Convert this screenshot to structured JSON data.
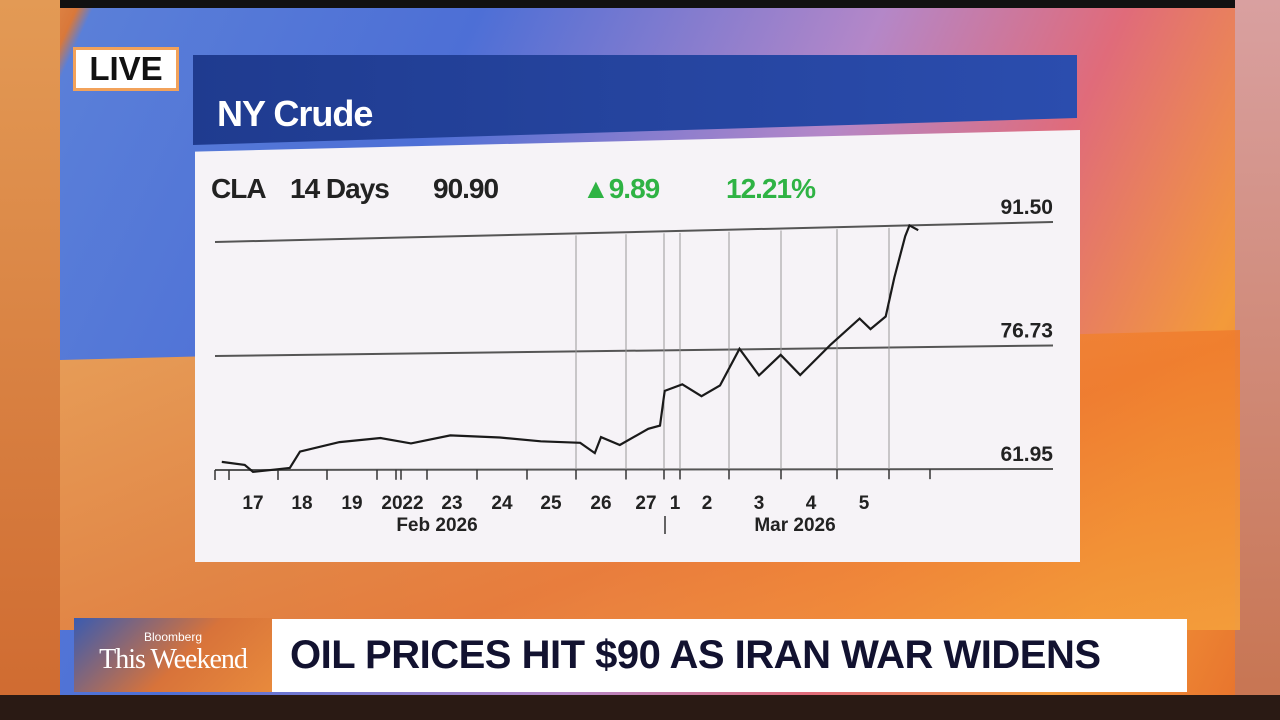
{
  "live_badge": "LIVE",
  "title": "NY Crude",
  "header": {
    "ticker": "CLA",
    "period": "14 Days",
    "last": "90.90",
    "change": "9.89",
    "change_pct": "12.21%",
    "up_icon": "triangle-up-icon"
  },
  "colors": {
    "up": "#2fb344",
    "title_bar": "#2b4dae",
    "line": "#1a1a1a"
  },
  "lower_third": {
    "brand_top": "Bloomberg",
    "brand_show": "This Weekend",
    "headline": "OIL PRICES HIT $90 AS IRAN WAR WIDENS"
  },
  "chart_data": {
    "type": "line",
    "title": "NY Crude",
    "y_ticks": [
      "61.95",
      "76.73",
      "91.50"
    ],
    "ylim": [
      61.95,
      91.5
    ],
    "x_tick_labels": [
      "17",
      "18",
      "19",
      "20",
      "22",
      "23",
      "24",
      "25",
      "26",
      "27",
      "1",
      "2",
      "3",
      "4",
      "5"
    ],
    "x_group_labels": [
      "Feb 2026",
      "Mar 2026"
    ],
    "grid": "horizontal at y ticks, vertical at Feb 26 onward",
    "series": [
      {
        "values": [
          {
            "x": "Feb 16 21:00",
            "y": 63.0
          },
          {
            "x": "Feb 17 08:00",
            "y": 62.6
          },
          {
            "x": "Feb 17 12:00",
            "y": 61.7
          },
          {
            "x": "Feb 18 06:00",
            "y": 62.2
          },
          {
            "x": "Feb 18 11:00",
            "y": 64.3
          },
          {
            "x": "Feb 19 06:00",
            "y": 65.5
          },
          {
            "x": "Feb 20 07:00",
            "y": 66.0
          },
          {
            "x": "Feb 22 11:00",
            "y": 65.3
          },
          {
            "x": "Feb 23 11:00",
            "y": 66.3
          },
          {
            "x": "Feb 24 11:00",
            "y": 66.0
          },
          {
            "x": "Feb 25 07:00",
            "y": 65.5
          },
          {
            "x": "Feb 26 02:00",
            "y": 65.3
          },
          {
            "x": "Feb 26 09:00",
            "y": 64.0
          },
          {
            "x": "Feb 26 12:00",
            "y": 66.0
          },
          {
            "x": "Feb 26 22:00",
            "y": 65.0
          },
          {
            "x": "Feb 27 14:00",
            "y": 67.0
          },
          {
            "x": "Mar 1 00:00",
            "y": 67.4
          },
          {
            "x": "Mar 1 04:00",
            "y": 71.7
          },
          {
            "x": "Mar 1 18:00",
            "y": 72.5
          },
          {
            "x": "Mar 2 08:00",
            "y": 71.0
          },
          {
            "x": "Mar 2 18:00",
            "y": 72.3
          },
          {
            "x": "Mar 3 03:00",
            "y": 76.8
          },
          {
            "x": "Mar 3 12:00",
            "y": 73.5
          },
          {
            "x": "Mar 3 22:00",
            "y": 76.0
          },
          {
            "x": "Mar 4 07:00",
            "y": 73.5
          },
          {
            "x": "Mar 4 21:00",
            "y": 77.2
          },
          {
            "x": "Mar 5 10:00",
            "y": 80.3
          },
          {
            "x": "Mar 5 15:00",
            "y": 79.0
          },
          {
            "x": "Mar 5 22:00",
            "y": 80.5
          },
          {
            "x": "Mar 6 02:00",
            "y": 85.2
          },
          {
            "x": "Mar 6 07:00",
            "y": 90.2
          },
          {
            "x": "Mar 6 09:00",
            "y": 91.5
          },
          {
            "x": "Mar 6 13:00",
            "y": 90.9
          }
        ]
      }
    ]
  }
}
